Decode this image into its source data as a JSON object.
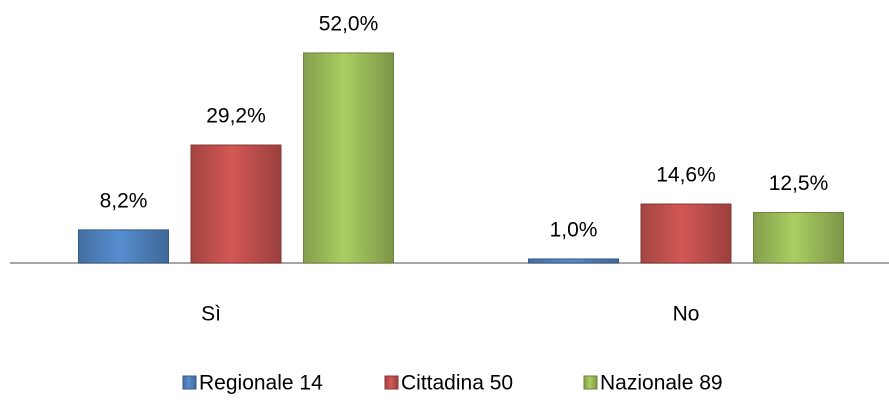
{
  "chart_data": {
    "type": "bar",
    "categories": [
      "Sì",
      "No"
    ],
    "series": [
      {
        "name": "Regionale 14",
        "color": "#4f81bd",
        "values": [
          8.2,
          1.0
        ],
        "value_labels": [
          "8,2%",
          "1,0%"
        ]
      },
      {
        "name": "Cittadina 50",
        "color": "#c0504d",
        "values": [
          29.2,
          14.6
        ],
        "value_labels": [
          "29,2%",
          "14,6%"
        ]
      },
      {
        "name": "Nazionale 89",
        "color": "#9bbb59",
        "values": [
          52.0,
          12.5
        ],
        "value_labels": [
          "52,0%",
          "12,5%"
        ]
      }
    ],
    "legend": "bottom"
  }
}
